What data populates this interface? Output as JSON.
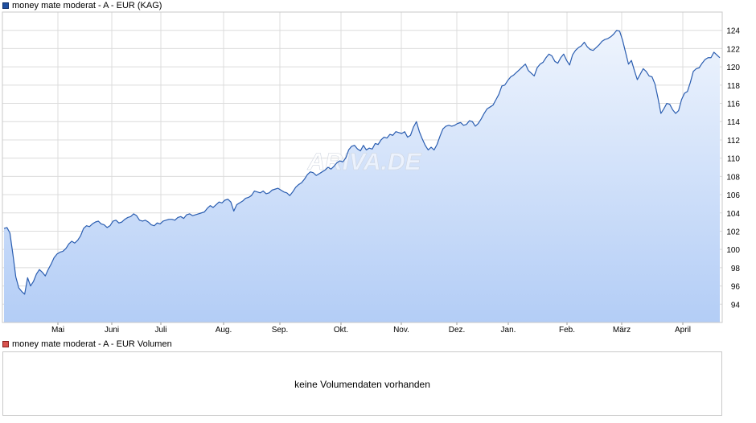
{
  "legend": {
    "price_label": "money mate moderat - A - EUR (KAG)",
    "volume_label": "money mate moderat - A - EUR Volumen",
    "price_color": "#1f4fa0",
    "volume_color": "#d9534f"
  },
  "volume": {
    "message": "keine Volumendaten vorhanden"
  },
  "watermark": "ARIVA.DE",
  "chart_data": {
    "type": "area",
    "ylim": [
      92,
      126
    ],
    "y_ticks": [
      94,
      96,
      98,
      100,
      102,
      104,
      106,
      108,
      110,
      112,
      114,
      116,
      118,
      120,
      122,
      124
    ],
    "x_labels": [
      "Mai",
      "Juni",
      "Juli",
      "Aug.",
      "Sep.",
      "Okt.",
      "Nov.",
      "Dez.",
      "Jan.",
      "Feb.",
      "März",
      "April"
    ],
    "grid": true,
    "line_color": "#2a5db0",
    "fill_top_color": "#eef4fd",
    "fill_bottom_color": "#b3cdf6",
    "series": [
      {
        "values": [
          102.3,
          102.4,
          101.8,
          99.5,
          97.0,
          95.8,
          95.4,
          95.1,
          96.9,
          96.0,
          96.5,
          97.3,
          97.8,
          97.5,
          97.1,
          97.8,
          98.4,
          99.1,
          99.5,
          99.7,
          99.8,
          100.1,
          100.6,
          100.9,
          100.7,
          101.0,
          101.5,
          102.3,
          102.6,
          102.5,
          102.8,
          103.0,
          103.1,
          102.8,
          102.7,
          102.4,
          102.6,
          103.1,
          103.2,
          102.9,
          103.0,
          103.3,
          103.5,
          103.6,
          103.9,
          103.7,
          103.2,
          103.1,
          103.2,
          103.0,
          102.7,
          102.6,
          102.9,
          102.8,
          103.1,
          103.2,
          103.3,
          103.3,
          103.2,
          103.5,
          103.6,
          103.4,
          103.8,
          103.9,
          103.7,
          103.8,
          103.9,
          104.0,
          104.1,
          104.5,
          104.8,
          104.6,
          104.9,
          105.2,
          105.1,
          105.4,
          105.5,
          105.2,
          104.2,
          104.9,
          105.1,
          105.3,
          105.6,
          105.7,
          105.9,
          106.4,
          106.3,
          106.2,
          106.4,
          106.1,
          106.2,
          106.5,
          106.6,
          106.7,
          106.5,
          106.3,
          106.2,
          105.9,
          106.3,
          106.8,
          107.1,
          107.3,
          107.7,
          108.2,
          108.5,
          108.4,
          108.1,
          108.3,
          108.5,
          108.7,
          109.0,
          108.8,
          109.1,
          109.5,
          109.7,
          109.6,
          110.0,
          110.9,
          111.3,
          111.4,
          111.0,
          110.8,
          111.4,
          110.9,
          111.1,
          111.0,
          111.6,
          111.5,
          112.0,
          112.3,
          112.2,
          112.6,
          112.5,
          112.9,
          112.8,
          112.7,
          112.9,
          112.3,
          112.5,
          113.4,
          114.0,
          112.9,
          112.1,
          111.4,
          110.9,
          111.2,
          110.9,
          111.5,
          112.4,
          113.2,
          113.5,
          113.6,
          113.5,
          113.6,
          113.8,
          113.9,
          113.6,
          113.7,
          114.1,
          114.0,
          113.5,
          113.8,
          114.3,
          114.9,
          115.4,
          115.6,
          115.8,
          116.4,
          117.0,
          117.9,
          118.0,
          118.5,
          118.9,
          119.1,
          119.4,
          119.7,
          120.0,
          120.3,
          119.6,
          119.3,
          119.0,
          119.9,
          120.3,
          120.5,
          121.0,
          121.4,
          121.2,
          120.6,
          120.4,
          121.0,
          121.4,
          120.7,
          120.2,
          121.3,
          121.8,
          122.1,
          122.3,
          122.7,
          122.2,
          121.9,
          121.8,
          122.1,
          122.4,
          122.8,
          123.0,
          123.1,
          123.3,
          123.6,
          124.0,
          123.9,
          122.9,
          121.6,
          120.3,
          120.7,
          119.6,
          118.6,
          119.2,
          119.8,
          119.5,
          119.0,
          118.9,
          118.1,
          116.6,
          114.9,
          115.4,
          116.0,
          115.9,
          115.3,
          114.9,
          115.2,
          116.4,
          117.1,
          117.3,
          118.3,
          119.5,
          119.8,
          119.9,
          120.4,
          120.8,
          121.0,
          121.0,
          121.6,
          121.3,
          121.0
        ]
      }
    ]
  }
}
